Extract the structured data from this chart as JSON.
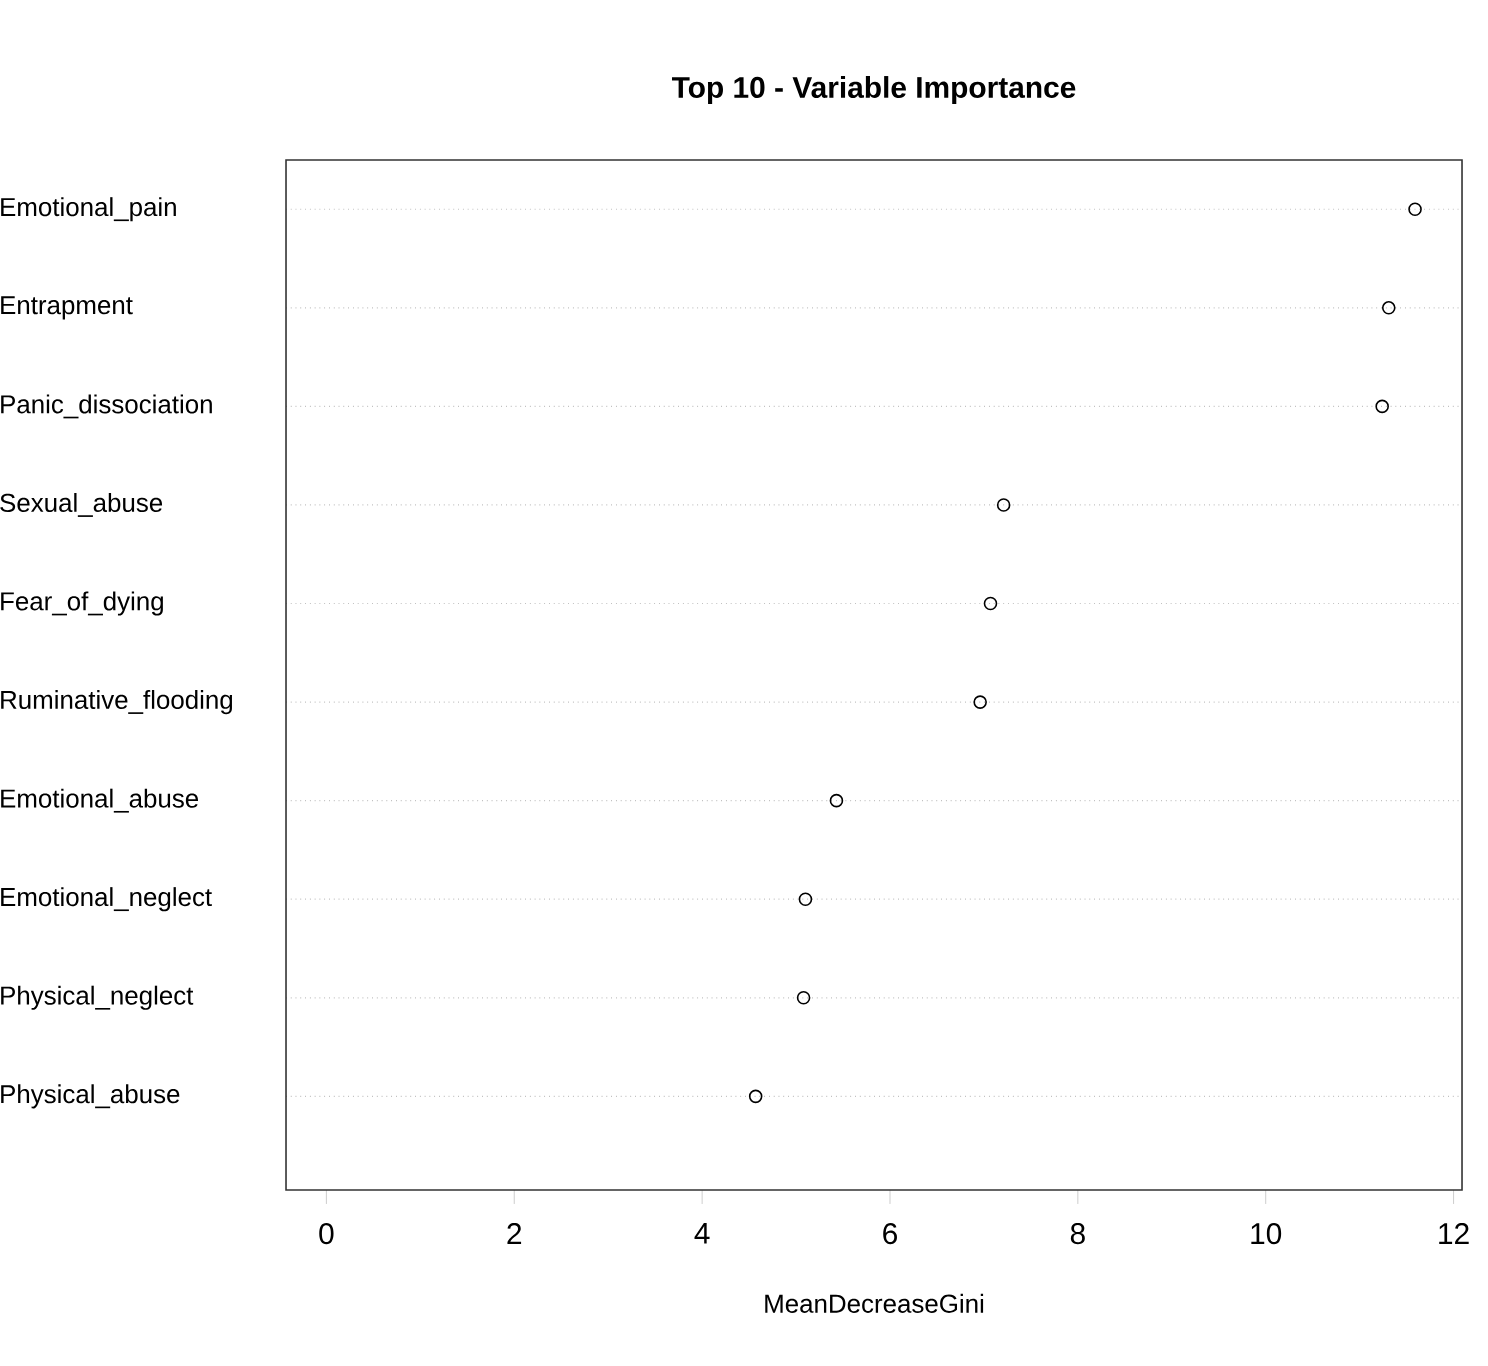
{
  "chart_data": {
    "type": "scatter",
    "orientation": "horizontal",
    "title": "Top 10 - Variable Importance",
    "xlabel": "MeanDecreaseGini",
    "categories": [
      "Emotional_pain",
      "Entrapment",
      "Panic_dissociation",
      "Sexual_abuse",
      "Fear_of_dying",
      "Ruminative_flooding",
      "Emotional_abuse",
      "Emotional_neglect",
      "Physical_neglect",
      "Physical_abuse"
    ],
    "values": [
      11.59,
      11.31,
      11.24,
      7.21,
      7.07,
      6.96,
      5.43,
      5.1,
      5.08,
      4.57
    ],
    "color": "#000000",
    "marker": "circle",
    "grid": "y",
    "xlim": [
      -0.43,
      12.09
    ],
    "xticks": [
      0,
      2,
      4,
      6,
      8,
      10,
      12
    ]
  }
}
